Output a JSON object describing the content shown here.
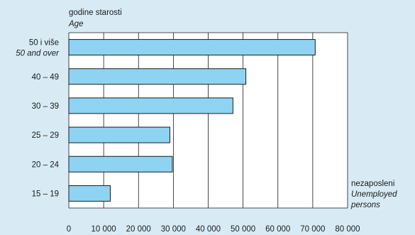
{
  "chart_data": {
    "type": "bar",
    "orientation": "horizontal",
    "y_title": "godine starosti",
    "y_title_en": "Age",
    "x_title": [
      "nezaposleni",
      "Unemployed",
      "persons"
    ],
    "categories": [
      {
        "label": "50 i više",
        "label_en": "50 and over"
      },
      {
        "label": "40 – 49"
      },
      {
        "label": "30 – 39"
      },
      {
        "label": "25 – 29"
      },
      {
        "label": "20 – 24"
      },
      {
        "label": "15 – 19"
      }
    ],
    "values": [
      70700,
      50800,
      47100,
      29000,
      29700,
      11900
    ],
    "xlim": [
      0,
      80000
    ],
    "xticks": [
      0,
      10000,
      20000,
      30000,
      40000,
      50000,
      60000,
      70000,
      80000
    ],
    "xtick_labels": [
      "0",
      "10 000",
      "20 000",
      "30 000",
      "40 000",
      "50 000",
      "60 000",
      "70 000",
      "80 000"
    ],
    "grid": true,
    "colors": {
      "background": "#d8ebf5",
      "plot_background": "#ffffff",
      "bar_fill": "#8fd3f3",
      "bar_stroke": "#1a1a1a",
      "grid": "#1a1a1a"
    }
  }
}
